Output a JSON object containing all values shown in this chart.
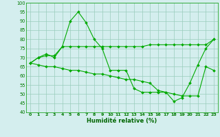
{
  "xlabel": "Humidité relative (%)",
  "background_color": "#d4eeee",
  "grid_color": "#99ccbb",
  "line_color": "#00aa00",
  "x_labels": [
    "0",
    "1",
    "2",
    "3",
    "4",
    "5",
    "6",
    "7",
    "8",
    "9",
    "10",
    "11",
    "12",
    "13",
    "14",
    "15",
    "16",
    "17",
    "18",
    "19",
    "20",
    "21",
    "22",
    "23"
  ],
  "ylim": [
    40,
    100
  ],
  "yticks": [
    40,
    45,
    50,
    55,
    60,
    65,
    70,
    75,
    80,
    85,
    90,
    95,
    100
  ],
  "series": [
    [
      67,
      70,
      72,
      70,
      76,
      90,
      95,
      89,
      80,
      75,
      63,
      63,
      63,
      53,
      51,
      51,
      51,
      51,
      46,
      48,
      56,
      66,
      75,
      80
    ],
    [
      67,
      70,
      71,
      71,
      76,
      76,
      76,
      76,
      76,
      76,
      76,
      76,
      76,
      76,
      76,
      77,
      77,
      77,
      77,
      77,
      77,
      77,
      77,
      80
    ],
    [
      67,
      66,
      65,
      65,
      64,
      63,
      63,
      62,
      61,
      61,
      60,
      59,
      58,
      58,
      57,
      56,
      52,
      51,
      50,
      49,
      49,
      49,
      65,
      63
    ]
  ]
}
